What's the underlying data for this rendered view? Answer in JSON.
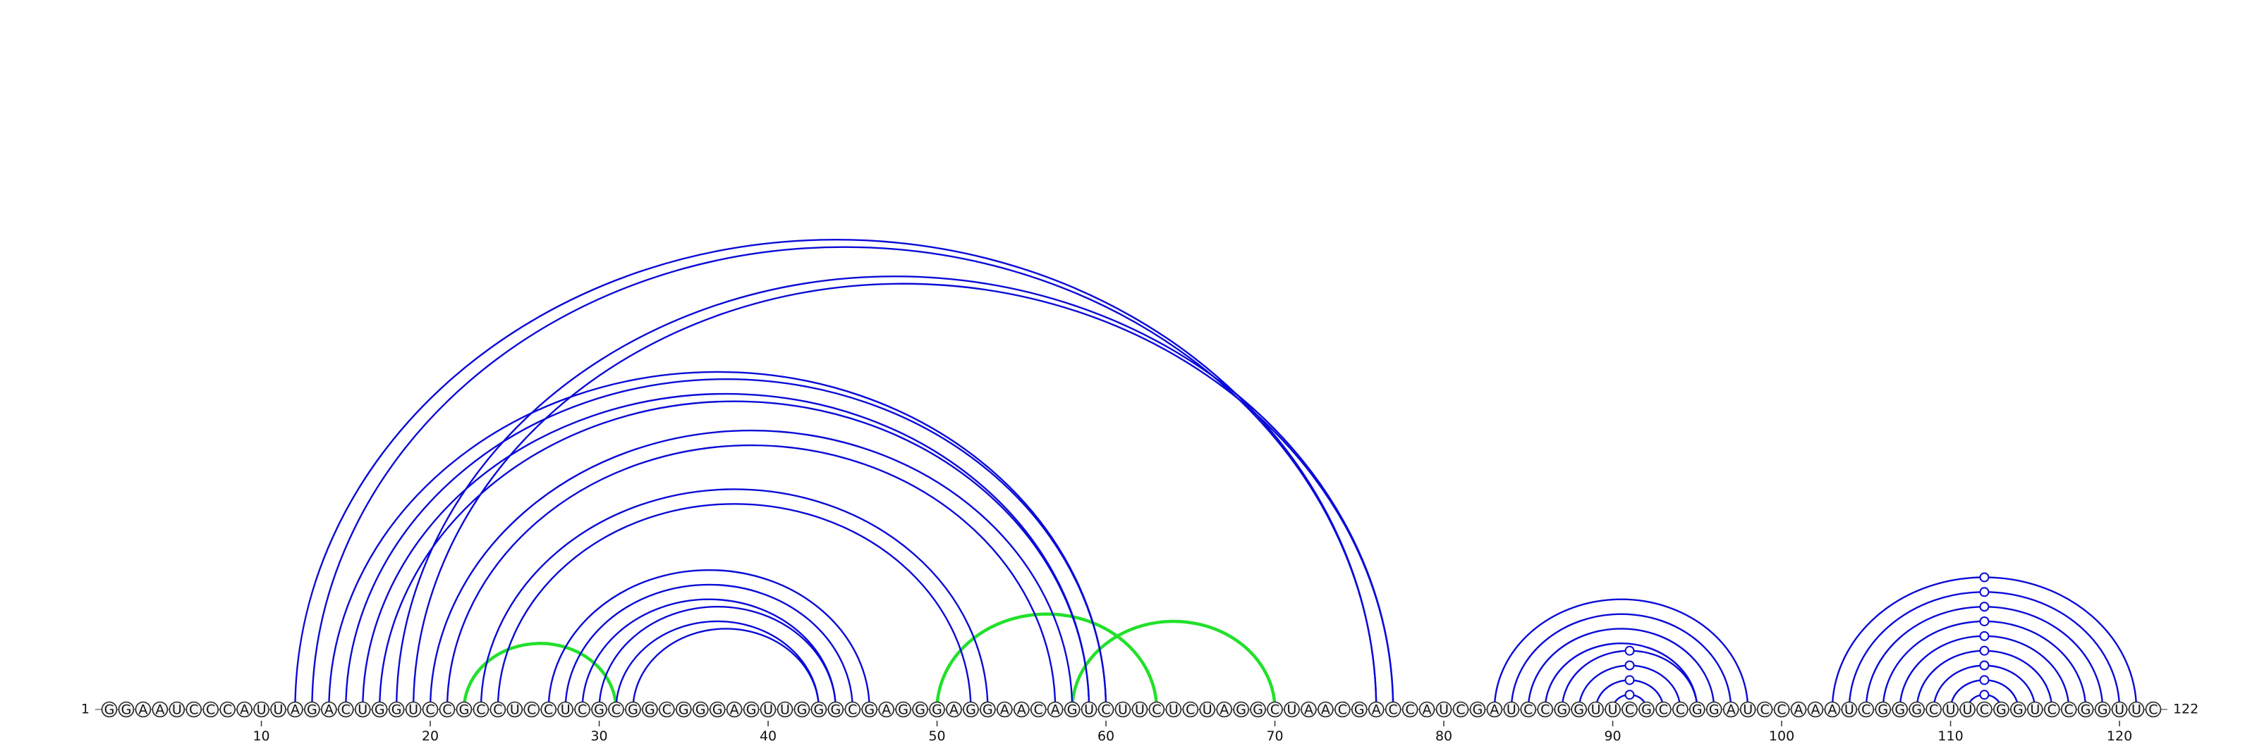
{
  "diagram": {
    "type": "rna-arc-diagram",
    "sequence": "GGAAUCCCAUUAGACUGGUCCGCCUCCUCGCGGCGGGAGUUGGGCGAGGGAGGAACAGUCUUCUCUAGGCUAACGACCAUCGAUCCGGUUCGCCGGAUCCAAAUCGGGCUUCGGUCCGGUUC",
    "start_label": "1",
    "end_label": "122",
    "tick_labels": [
      "10",
      "20",
      "30",
      "40",
      "50",
      "60",
      "70",
      "80",
      "90",
      "100",
      "110",
      "120"
    ],
    "colors": {
      "primary_arcs": "#0a0ad8",
      "secondary_arcs": "#22e02a",
      "nucleotide_fill": "#f4f4f4",
      "nucleotide_stroke": "#222222",
      "backbone": "#777777"
    },
    "primary_pairs": [
      [
        12,
        76
      ],
      [
        13,
        76
      ],
      [
        14,
        60
      ],
      [
        15,
        60
      ],
      [
        16,
        59
      ],
      [
        17,
        59
      ],
      [
        18,
        77
      ],
      [
        19,
        77
      ],
      [
        20,
        58
      ],
      [
        21,
        57
      ],
      [
        23,
        53
      ],
      [
        24,
        52
      ],
      [
        27,
        46
      ],
      [
        28,
        45
      ],
      [
        29,
        44
      ],
      [
        30,
        44
      ],
      [
        31,
        43
      ],
      [
        32,
        43
      ],
      [
        83,
        98
      ],
      [
        84,
        97
      ],
      [
        85,
        96
      ],
      [
        86,
        95
      ],
      [
        87,
        95
      ],
      [
        88,
        94
      ],
      [
        89,
        93
      ],
      [
        90,
        92
      ],
      [
        103,
        121
      ],
      [
        104,
        120
      ],
      [
        105,
        119
      ],
      [
        106,
        118
      ],
      [
        107,
        117
      ],
      [
        108,
        116
      ],
      [
        109,
        115
      ],
      [
        110,
        114
      ],
      [
        111,
        113
      ]
    ],
    "secondary_pairs": [
      [
        22,
        31
      ],
      [
        50,
        63
      ],
      [
        58,
        70
      ]
    ],
    "marked_positions": [
      91,
      112
    ]
  }
}
